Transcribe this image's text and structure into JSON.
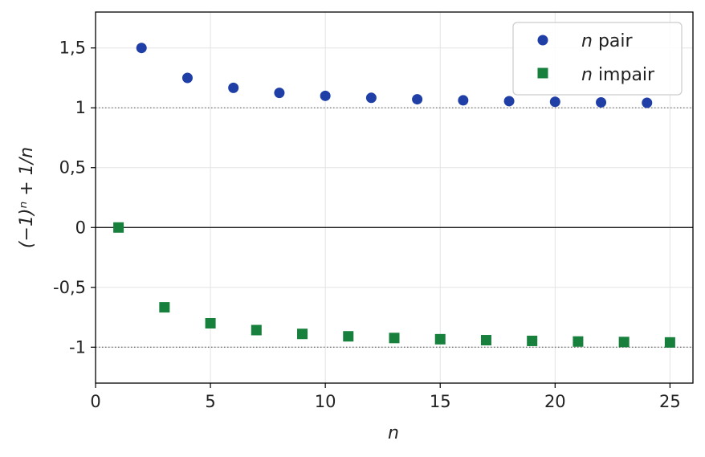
{
  "chart_data": {
    "type": "scatter",
    "xlabel": "n",
    "ylabel": "(−1)ⁿ + 1/n",
    "xlim": [
      0,
      26
    ],
    "ylim": [
      -1.3,
      1.8
    ],
    "xticks": [
      0,
      5,
      10,
      15,
      20,
      25
    ],
    "xtick_labels": [
      "0",
      "5",
      "10",
      "15",
      "20",
      "25"
    ],
    "yticks": [
      -1,
      -0.5,
      0,
      0.5,
      1,
      1.5
    ],
    "ytick_labels": [
      "-1",
      "-0,5",
      "0",
      "0,5",
      "1",
      "1,5"
    ],
    "grid": true,
    "legend_position": "top-right",
    "reference_lines": [
      {
        "y": 1,
        "style": "dotted",
        "color": "#777777"
      },
      {
        "y": -1,
        "style": "dotted",
        "color": "#777777"
      },
      {
        "y": 0,
        "style": "solid",
        "color": "#000000"
      }
    ],
    "series": [
      {
        "name": "n pair",
        "marker": "circle",
        "color": "#1f3fa6",
        "x": [
          2,
          4,
          6,
          8,
          10,
          12,
          14,
          16,
          18,
          20,
          22,
          24
        ],
        "y": [
          1.5,
          1.25,
          1.1667,
          1.125,
          1.1,
          1.0833,
          1.0714,
          1.0625,
          1.0556,
          1.05,
          1.0455,
          1.0417
        ]
      },
      {
        "name": "n impair",
        "marker": "square",
        "color": "#16803c",
        "x": [
          1,
          3,
          5,
          7,
          9,
          11,
          13,
          15,
          17,
          19,
          21,
          23,
          25
        ],
        "y": [
          0,
          -0.6667,
          -0.8,
          -0.8571,
          -0.8889,
          -0.9091,
          -0.9231,
          -0.9333,
          -0.9412,
          -0.9474,
          -0.9524,
          -0.9565,
          -0.96
        ]
      }
    ]
  }
}
